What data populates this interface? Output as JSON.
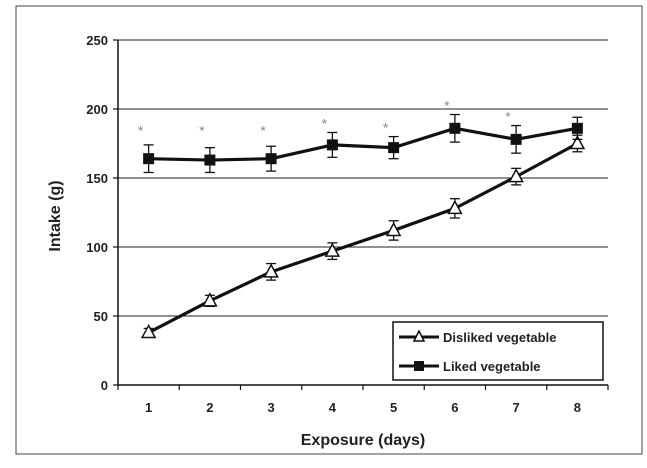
{
  "chart_data": {
    "type": "line",
    "xlabel": "Exposure (days)",
    "ylabel": "Intake (g)",
    "x": [
      1,
      2,
      3,
      4,
      5,
      6,
      7,
      8
    ],
    "x_tick_labels": [
      "1",
      "2",
      "3",
      "4",
      "5",
      "6",
      "7",
      "8"
    ],
    "ylim": [
      0,
      250
    ],
    "y_ticks": [
      0,
      50,
      100,
      150,
      200,
      250
    ],
    "y_tick_labels": [
      "0",
      "50",
      "100",
      "150",
      "200",
      "250"
    ],
    "grid": "horizontal",
    "legend_position": "bottom-right",
    "series": [
      {
        "name": "Disliked vegetable",
        "marker": "open-triangle",
        "color": "#111111",
        "values": [
          38,
          61,
          82,
          97,
          112,
          128,
          151,
          175
        ],
        "errors": [
          3,
          4,
          6,
          6,
          7,
          7,
          6,
          6
        ]
      },
      {
        "name": "Liked vegetable",
        "marker": "filled-square",
        "color": "#111111",
        "values": [
          164,
          163,
          164,
          174,
          172,
          186,
          178,
          186
        ],
        "errors": [
          10,
          9,
          9,
          9,
          8,
          10,
          10,
          8
        ]
      }
    ],
    "significance_marker": "*",
    "significance_days": [
      1,
      2,
      3,
      4,
      5,
      6,
      7
    ]
  },
  "colors": {
    "axis": "#111111",
    "grid": "#222222",
    "significance": "#8a8a8a"
  }
}
